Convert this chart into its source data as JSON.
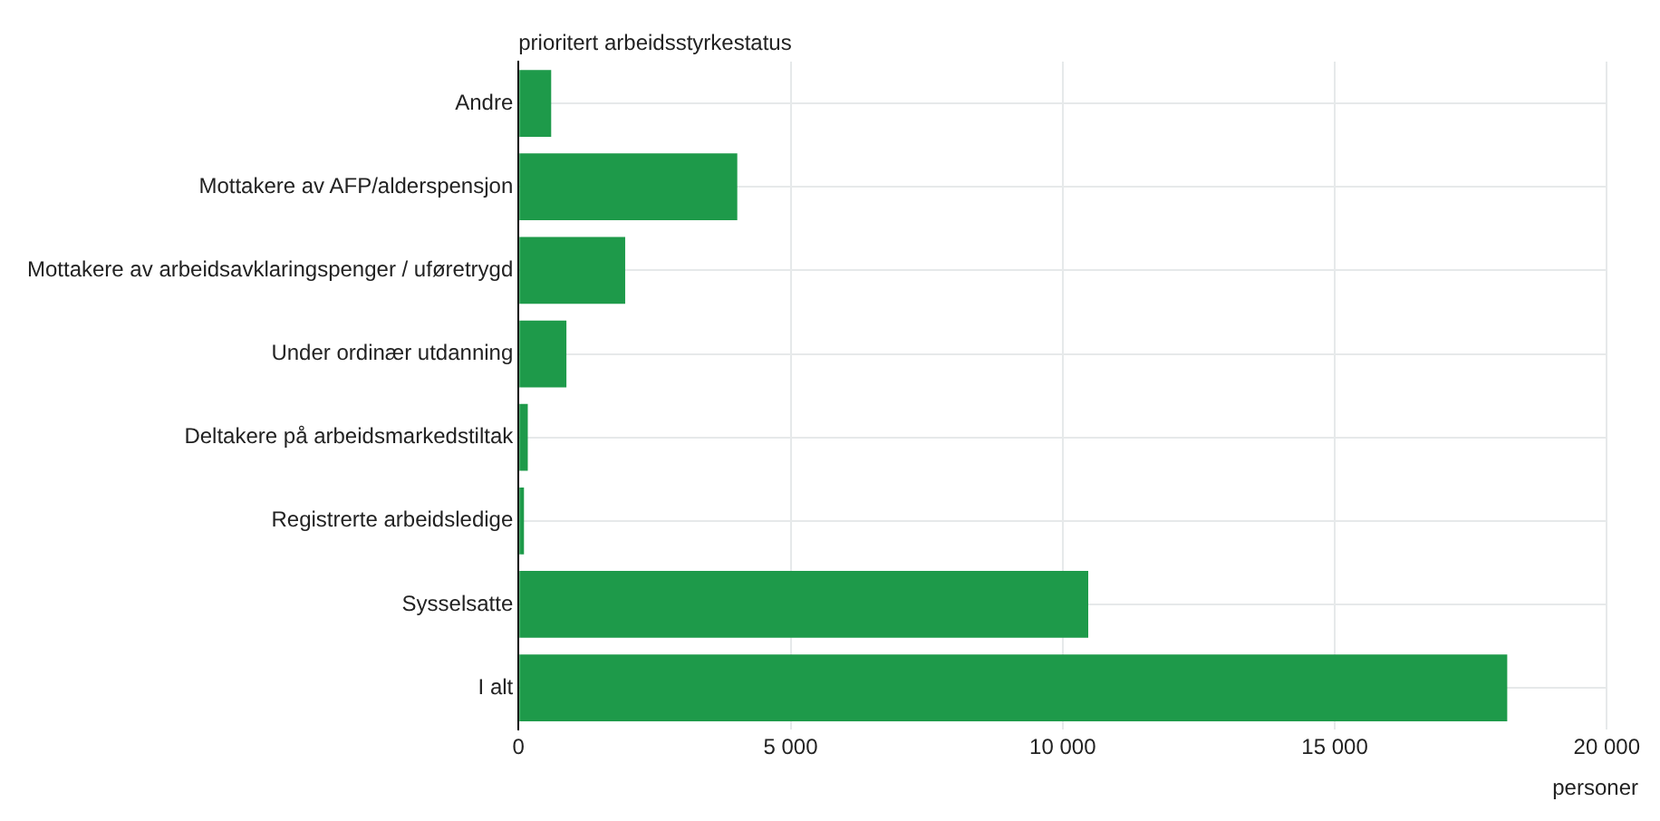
{
  "chart_data": {
    "type": "bar",
    "orientation": "horizontal",
    "ylabel": "prioritert arbeidsstyrkestatus",
    "xlabel": "personer",
    "categories": [
      "Andre",
      "Mottakere av AFP/alderspensjon",
      "Mottakere av arbeidsavklaringspenger / uføretrygd",
      "Under ordinær utdanning",
      "Deltakere på arbeidsmarkedstiltak",
      "Registrerte arbeidsledige",
      "Sysselsatte",
      "I alt"
    ],
    "values": [
      600,
      4020,
      1960,
      880,
      170,
      100,
      10470,
      18170
    ],
    "color": "#1e9a4a",
    "xlim": [
      0,
      20000
    ],
    "xticks": [
      {
        "value": 0,
        "label": "0"
      },
      {
        "value": 5000,
        "label": "5 000"
      },
      {
        "value": 10000,
        "label": "10 000"
      },
      {
        "value": 15000,
        "label": "15 000"
      },
      {
        "value": 20000,
        "label": "20 000"
      }
    ],
    "grid": true,
    "legend": false
  }
}
